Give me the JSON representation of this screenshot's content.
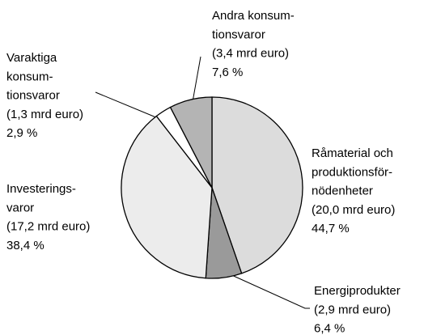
{
  "chart_data": {
    "type": "pie",
    "categories": [
      [
        "Råmaterial och",
        "produktionsför-",
        "nödenheter"
      ],
      [
        "Energiprodukter"
      ],
      [
        "Investerings-",
        "varor"
      ],
      [
        "Varaktiga",
        "konsum-",
        "tionsvaror"
      ],
      [
        "Andra konsum-",
        "tionsvaror"
      ]
    ],
    "amount_labels": [
      "(20,0 mrd euro)",
      "(2,9 mrd euro)",
      "(17,2 mrd euro)",
      "(1,3 mrd euro)",
      "(3,4 mrd euro)"
    ],
    "values": [
      44.7,
      6.4,
      38.4,
      2.9,
      7.6
    ],
    "value_labels": [
      "44,7 %",
      "6,4 %",
      "38,4 %",
      "2,9 %",
      "7,6 %"
    ],
    "colors": [
      "#dcdcdc",
      "#9a9a9a",
      "#ececec",
      "#ffffff",
      "#b4b4b4"
    ]
  }
}
